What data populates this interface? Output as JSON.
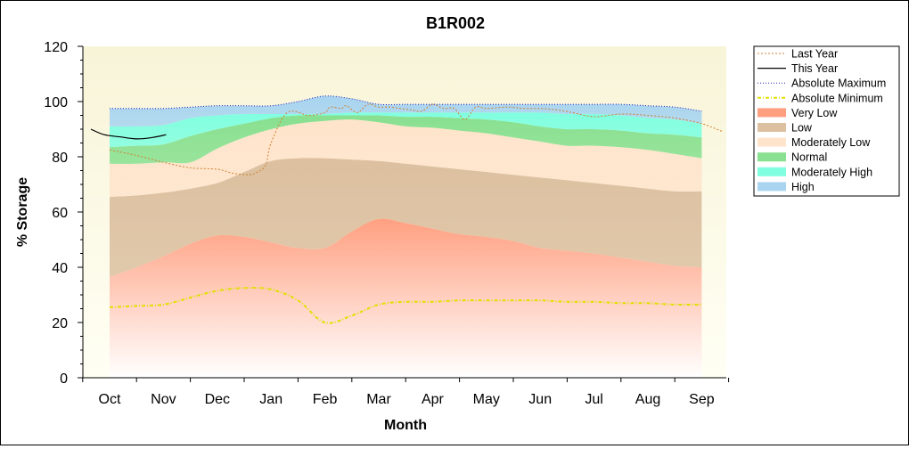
{
  "chart_data": {
    "type": "area",
    "title": "B1R002",
    "xlabel": "Month",
    "ylabel": "% Storage",
    "ylim": [
      0,
      120
    ],
    "yticks": [
      0,
      20,
      40,
      60,
      80,
      100,
      120
    ],
    "categories": [
      "Oct",
      "Nov",
      "Dec",
      "Jan",
      "Feb",
      "Mar",
      "Apr",
      "May",
      "Jun",
      "Jul",
      "Aug",
      "Sep"
    ],
    "grid": false,
    "legend_position": "right",
    "band_boundaries_x": [
      0,
      0.5,
      1,
      1.5,
      2,
      2.5,
      3,
      3.5,
      4,
      4.5,
      5,
      5.5,
      6,
      6.5,
      7,
      7.5,
      8,
      8.5,
      9,
      9.5,
      10,
      10.5,
      11
    ],
    "bands": [
      {
        "name": "Very Low",
        "color": "#ff9f80",
        "lower": [
          0,
          0,
          0,
          0,
          0,
          0,
          0,
          0,
          0,
          0,
          0,
          0,
          0,
          0,
          0,
          0,
          0,
          0,
          0,
          0,
          0,
          0,
          0
        ],
        "upper": [
          36.5,
          40,
          44,
          48.5,
          51.5,
          51,
          49,
          47,
          47,
          53,
          57.5,
          56,
          54,
          52,
          51,
          49.5,
          47,
          46,
          45,
          43.5,
          42,
          40.5,
          40
        ]
      },
      {
        "name": "Low",
        "color": "#dcc0a0",
        "lower": [
          36.5,
          40,
          44,
          48.5,
          51.5,
          51,
          49,
          47,
          47,
          53,
          57.5,
          56,
          54,
          52,
          51,
          49.5,
          47,
          46,
          45,
          43.5,
          42,
          40.5,
          40
        ],
        "upper": [
          65.5,
          66,
          67,
          68.5,
          70.5,
          74.5,
          78.5,
          79.5,
          79.5,
          79,
          78.5,
          77.5,
          76.5,
          75.5,
          74.5,
          73.5,
          72.5,
          71.5,
          70.5,
          69.5,
          68.5,
          67.5,
          67.5
        ]
      },
      {
        "name": "Moderately Low",
        "color": "#ffe4cc",
        "lower": [
          65.5,
          66,
          67,
          68.5,
          70.5,
          74.5,
          78.5,
          79.5,
          79.5,
          79,
          78.5,
          77.5,
          76.5,
          75.5,
          74.5,
          73.5,
          72.5,
          71.5,
          70.5,
          69.5,
          68.5,
          67.5,
          67.5
        ],
        "upper": [
          77.5,
          77.5,
          78,
          78,
          83,
          87,
          90,
          92,
          93,
          93.5,
          92.5,
          91,
          90.5,
          89.5,
          88.5,
          87,
          85.5,
          84,
          84,
          83.5,
          82.5,
          81,
          79.5
        ]
      },
      {
        "name": "Normal",
        "color": "#88e090",
        "lower": [
          77.5,
          77.5,
          78,
          78,
          83,
          87,
          90,
          92,
          93,
          93.5,
          92.5,
          91,
          90.5,
          89.5,
          88.5,
          87,
          85.5,
          84,
          84,
          83.5,
          82.5,
          81,
          79.5
        ],
        "upper": [
          83.5,
          84,
          84.5,
          87.5,
          90,
          92,
          94,
          95,
          95,
          95,
          95,
          94.5,
          94.5,
          94,
          93.5,
          92.5,
          91,
          90,
          90,
          89.5,
          88.5,
          88,
          87
        ]
      },
      {
        "name": "Moderately High",
        "color": "#80ffe0",
        "lower": [
          83.5,
          84,
          84.5,
          87.5,
          90,
          92,
          94,
          95,
          95,
          95,
          95,
          94.5,
          94.5,
          94,
          93.5,
          92.5,
          91,
          90,
          90,
          89.5,
          88.5,
          88,
          87
        ],
        "upper": [
          91,
          91,
          91.5,
          94,
          95,
          95.5,
          95.5,
          95.5,
          95.5,
          96,
          96,
          96,
          96,
          96,
          96,
          96,
          96,
          95.5,
          95.5,
          95,
          94,
          93.5,
          92
        ]
      },
      {
        "name": "High",
        "color": "#a8d4f0",
        "lower": [
          91,
          91,
          91.5,
          94,
          95,
          95.5,
          95.5,
          95.5,
          95.5,
          96,
          96,
          96,
          96,
          96,
          96,
          96,
          96,
          95.5,
          95.5,
          95,
          94,
          93.5,
          92
        ],
        "upper": [
          97.5,
          97.5,
          97.5,
          98,
          98.5,
          98.5,
          98.5,
          100,
          102,
          101,
          99,
          99,
          99,
          99,
          99,
          99,
          99,
          99,
          99,
          99,
          98.5,
          98,
          96.5
        ]
      }
    ],
    "series": [
      {
        "name": "Last Year",
        "color": "#d08030",
        "style": "dashed-thin",
        "x": [
          0,
          0.5,
          1,
          1.5,
          2,
          2.3,
          2.6,
          2.75,
          2.9,
          3,
          3.3,
          3.7,
          4,
          4.1,
          4.3,
          4.4,
          4.6,
          4.8,
          5,
          5.2,
          5.4,
          5.6,
          5.8,
          6,
          6.2,
          6.4,
          6.6,
          6.8,
          7,
          7.4,
          7.7,
          8,
          8.3,
          8.6,
          9,
          9.5,
          10,
          10.5,
          11,
          11.4
        ],
        "y": [
          82.5,
          80.5,
          78,
          76,
          75.5,
          74,
          73.5,
          74.5,
          77,
          85,
          96,
          95,
          96,
          98,
          97.5,
          98.5,
          96,
          99,
          98,
          98,
          97.5,
          97,
          96.5,
          99,
          97.5,
          97.5,
          93.5,
          98,
          97.5,
          98,
          97.5,
          97.5,
          97,
          96,
          94.5,
          95.5,
          95,
          94,
          92,
          89
        ]
      },
      {
        "name": "This Year",
        "color": "#000000",
        "style": "solid",
        "x": [
          -0.35,
          -0.1,
          0.2,
          0.5,
          0.8,
          1.05
        ],
        "y": [
          90,
          88,
          87.2,
          86.5,
          87,
          88
        ]
      },
      {
        "name": "Absolute Maximum",
        "color": "#2020c0",
        "style": "dotted",
        "x": [
          0,
          0.5,
          1,
          1.5,
          2,
          2.5,
          3,
          3.5,
          4,
          4.5,
          5,
          5.5,
          6,
          6.5,
          7,
          7.5,
          8,
          8.5,
          9,
          9.5,
          10,
          10.5,
          11
        ],
        "y": [
          97.5,
          97.5,
          97.5,
          98,
          98.5,
          98.5,
          98.5,
          100,
          102,
          101,
          99,
          99,
          99,
          99,
          99,
          99,
          99,
          99,
          99,
          99,
          98.5,
          98,
          96.5
        ]
      },
      {
        "name": "Absolute Minimum",
        "color": "#e0e000",
        "style": "dashdot",
        "x": [
          0,
          0.5,
          1,
          1.5,
          2,
          2.5,
          3,
          3.5,
          4,
          4.5,
          5,
          5.5,
          6,
          6.5,
          7,
          7.5,
          8,
          8.5,
          9,
          9.5,
          10,
          10.5,
          11
        ],
        "y": [
          25.5,
          26,
          26.5,
          29,
          31.5,
          32.5,
          32,
          28,
          20,
          22.5,
          26.5,
          27.5,
          27.5,
          28,
          28,
          28,
          28,
          27.5,
          27.5,
          27,
          27,
          26.5,
          26.5
        ]
      }
    ]
  },
  "legend": [
    {
      "label": "Last Year",
      "kind": "line",
      "color": "#d08030",
      "dash": "2,2",
      "width": 1
    },
    {
      "label": "This Year",
      "kind": "line",
      "color": "#000000",
      "dash": "",
      "width": 1.2
    },
    {
      "label": "Absolute Maximum",
      "kind": "line",
      "color": "#2020c0",
      "dash": "1,2",
      "width": 1
    },
    {
      "label": "Absolute Minimum",
      "kind": "line",
      "color": "#e0e000",
      "dash": "4,2,1,2",
      "width": 2
    },
    {
      "label": "Very Low",
      "kind": "band",
      "color": "#ff9f80"
    },
    {
      "label": "Low",
      "kind": "band",
      "color": "#dcc0a0"
    },
    {
      "label": "Moderately Low",
      "kind": "band",
      "color": "#ffe4cc"
    },
    {
      "label": "Normal",
      "kind": "band",
      "color": "#88e090"
    },
    {
      "label": "Moderately High",
      "kind": "band",
      "color": "#80ffe0"
    },
    {
      "label": "High",
      "kind": "band",
      "color": "#a8d4f0"
    }
  ]
}
